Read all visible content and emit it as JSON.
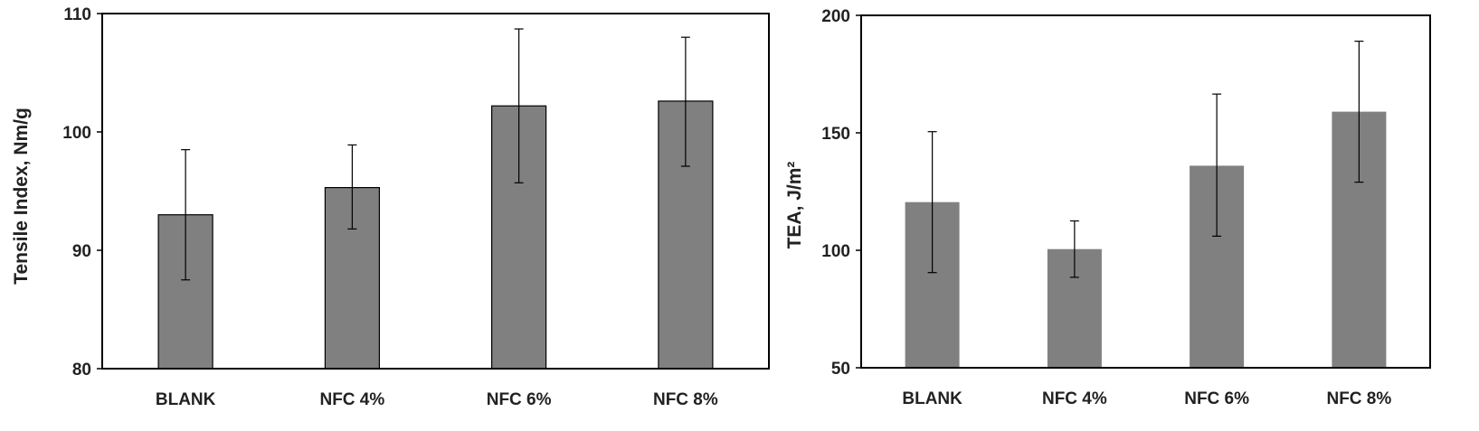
{
  "chart_data": [
    {
      "type": "bar",
      "title": "",
      "xlabel": "",
      "ylabel": "Tensile Index, Nm/g",
      "ylim": [
        80,
        110
      ],
      "yticks": [
        80,
        90,
        100,
        110
      ],
      "categories": [
        "BLANK",
        "NFC 4%",
        "NFC 6%",
        "NFC 8%"
      ],
      "values": [
        93.0,
        95.3,
        102.2,
        102.6
      ],
      "error_low": [
        87.5,
        91.8,
        95.7,
        97.1
      ],
      "error_high": [
        98.5,
        98.9,
        108.7,
        108.0
      ],
      "bar_color": "#808080",
      "bar_outline": true,
      "grid": false,
      "legend": "none"
    },
    {
      "type": "bar",
      "title": "",
      "xlabel": "",
      "ylabel": "TEA, J/m²",
      "ylim": [
        50,
        200
      ],
      "yticks": [
        50,
        100,
        150,
        200
      ],
      "categories": [
        "BLANK",
        "NFC 4%",
        "NFC 6%",
        "NFC 8%"
      ],
      "values": [
        120.5,
        100.5,
        136.0,
        159.0
      ],
      "error_low": [
        90.5,
        88.5,
        106.0,
        129.0
      ],
      "error_high": [
        150.5,
        112.5,
        166.5,
        189.0
      ],
      "bar_color": "#808080",
      "bar_outline": false,
      "grid": false,
      "legend": "none"
    }
  ]
}
